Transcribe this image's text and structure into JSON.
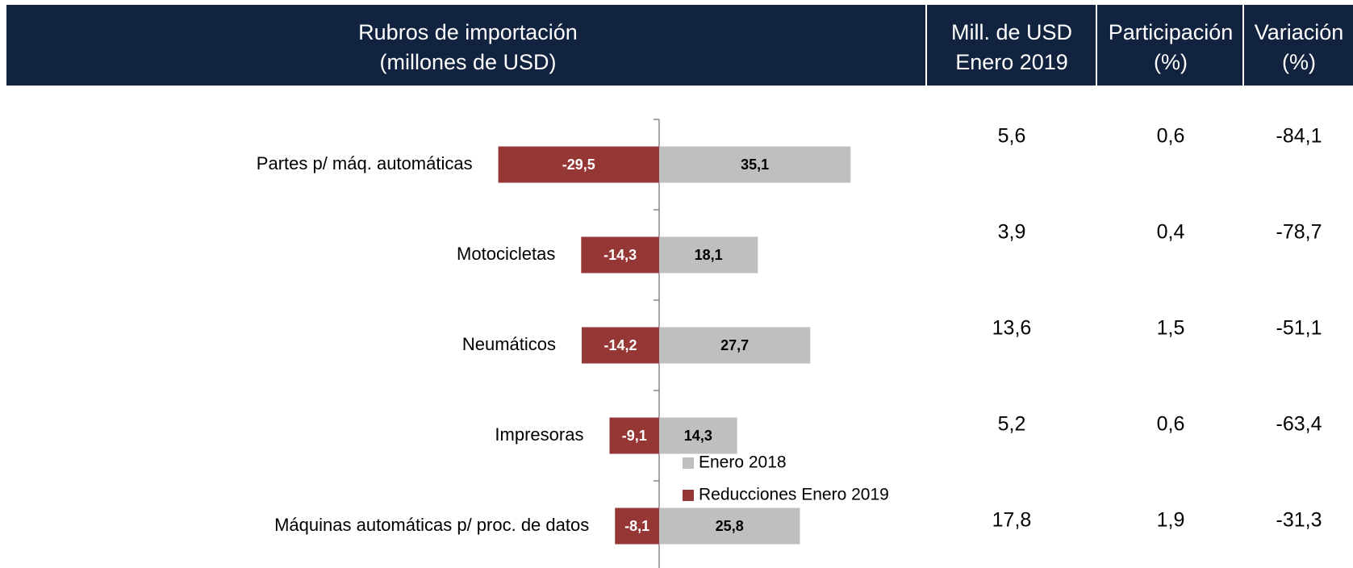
{
  "table": {
    "headers": [
      [
        "Rubros de importación",
        "(millones de USD)"
      ],
      [
        "Mill. de USD",
        "Enero 2019"
      ],
      [
        "Participación",
        "(%)"
      ],
      [
        "Variación",
        "(%)"
      ]
    ],
    "rows": [
      [
        "5,6",
        "0,6",
        "-84,1"
      ],
      [
        "3,9",
        "0,4",
        "-78,7"
      ],
      [
        "13,6",
        "1,5",
        "-51,1"
      ],
      [
        "5,2",
        "0,6",
        "-63,4"
      ],
      [
        "17,8",
        "1,9",
        "-31,3"
      ]
    ]
  },
  "chart_data": {
    "type": "bar",
    "orientation": "horizontal",
    "stacked": true,
    "categories": [
      "Partes p/ máq. automáticas",
      "Motocicletas",
      "Neumáticos",
      "Impresoras",
      "Máquinas automáticas p/ proc. de datos"
    ],
    "series": [
      {
        "name": "Enero 2018",
        "color": "#bfbfbf",
        "label_color": "#000000",
        "values": [
          35.1,
          18.1,
          27.7,
          14.3,
          25.8
        ],
        "value_labels": [
          "35,1",
          "18,1",
          "27,7",
          "14,3",
          "25,8"
        ]
      },
      {
        "name": "Reducciones Enero 2019",
        "color": "#953735",
        "label_color": "#ffffff",
        "values": [
          -29.5,
          -14.3,
          -14.2,
          -9.1,
          -8.1
        ],
        "value_labels": [
          "-29,5",
          "-14,3",
          "-14,2",
          "-9,1",
          "-8,1"
        ]
      }
    ]
  }
}
